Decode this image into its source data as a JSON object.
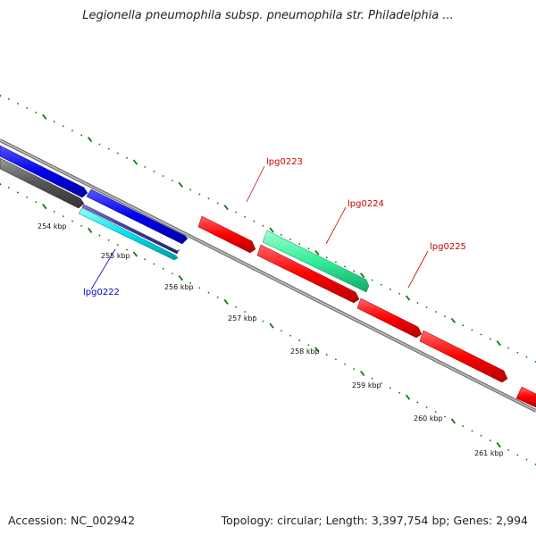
{
  "title": "Legionella pneumophila subsp. pneumophila str. Philadelphia ...",
  "footer": {
    "accession": "Accession: NC_002942",
    "summary": "Topology: circular; Length: 3,397,754 bp; Genes: 2,994"
  },
  "scale": {
    "tick_labels": [
      "254 kbp",
      "255 kbp",
      "256 kbp",
      "257 kbp",
      "258 kbp",
      "259 kbp",
      "260 kbp",
      "261 kbp"
    ]
  },
  "genes": {
    "lpg0222": {
      "label": "lpg0222",
      "color": "#0000cc"
    },
    "lpg0223": {
      "label": "lpg0223",
      "color": "#cc0000"
    },
    "lpg0224": {
      "label": "lpg0224",
      "color": "#cc0000"
    },
    "lpg0225": {
      "label": "lpg0225",
      "color": "#cc0000"
    }
  },
  "colors": {
    "tick": "#117711",
    "backbone": "#888888",
    "cds_forward_red": "#ff0000",
    "cds_blue": "#0000ee",
    "cds_cyan": "#00e0ee",
    "cds_navy": "#3c3ca0",
    "cds_gray": "#555555",
    "cds_green": "#33ee99"
  }
}
